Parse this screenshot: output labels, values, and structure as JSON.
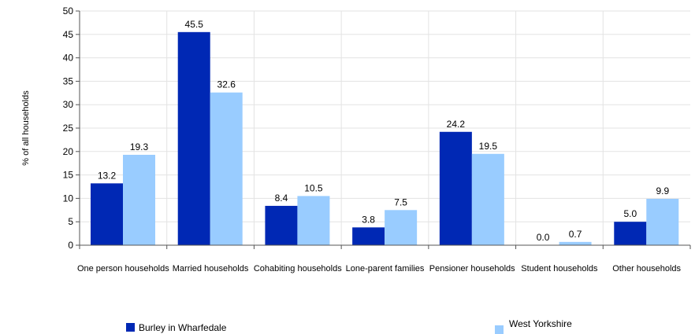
{
  "chart_data": {
    "type": "bar",
    "title": "",
    "xlabel": "",
    "ylabel": "% of all households",
    "ylim": [
      0,
      50
    ],
    "yticks": [
      0,
      5,
      10,
      15,
      20,
      25,
      30,
      35,
      40,
      45,
      50
    ],
    "grid": true,
    "legend_position": "bottom",
    "categories": [
      "One person households",
      "Married households",
      "Cohabiting households",
      "Lone-parent families",
      "Pensioner households",
      "Student households",
      "Other households"
    ],
    "series": [
      {
        "name": "Burley in Wharfedale",
        "color": "#0028b4",
        "values": [
          13.2,
          45.5,
          8.4,
          3.8,
          24.2,
          0.0,
          5.0
        ],
        "labels": [
          "13.2",
          "45.5",
          "8.4",
          "3.8",
          "24.2",
          "0.0",
          "5.0"
        ]
      },
      {
        "name": "West Yorkshire",
        "color": "#99ccff",
        "values": [
          19.3,
          32.6,
          10.5,
          7.5,
          19.5,
          0.7,
          9.9
        ],
        "labels": [
          "19.3",
          "32.6",
          "10.5",
          "7.5",
          "19.5",
          "0.7",
          "9.9"
        ]
      }
    ]
  }
}
